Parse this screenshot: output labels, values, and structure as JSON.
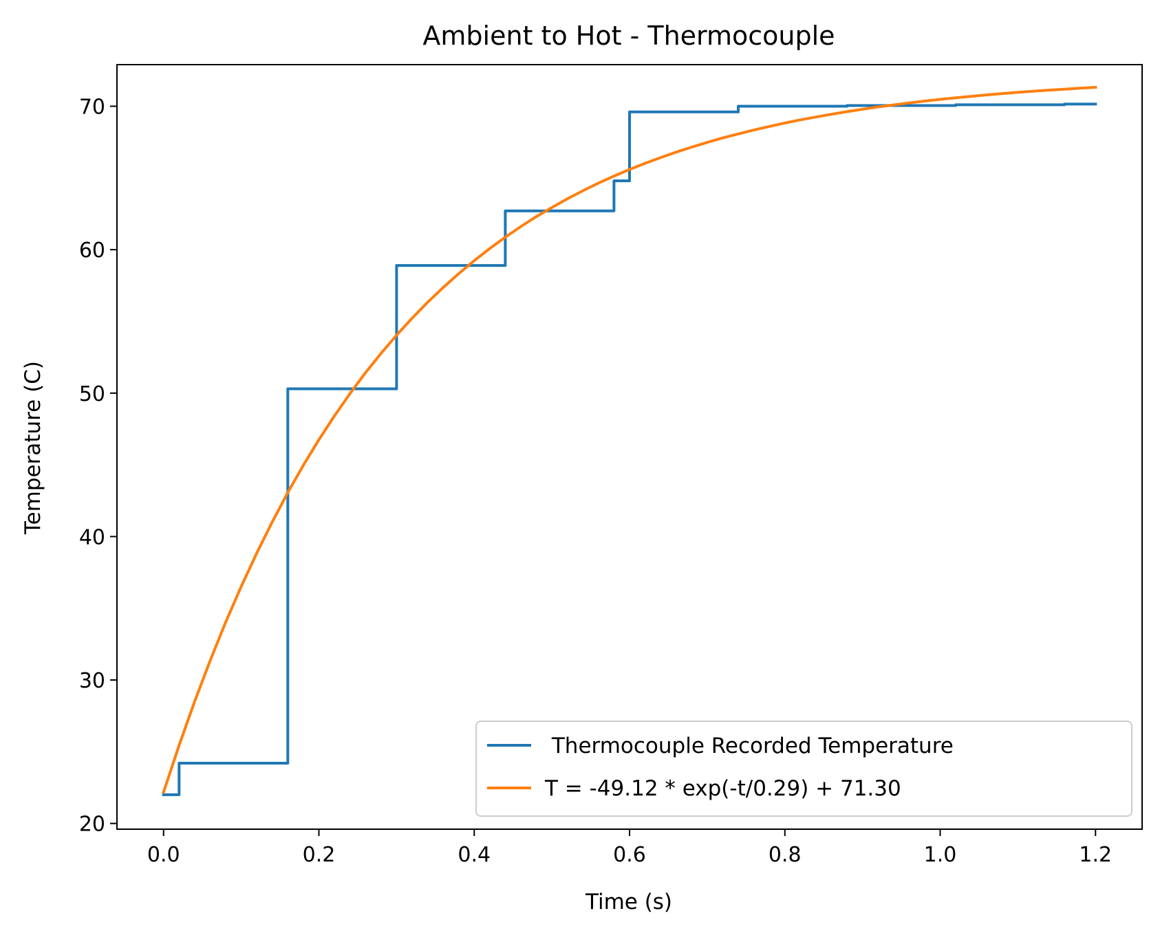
{
  "chart_data": {
    "type": "line",
    "title": "Ambient to Hot - Thermocouple",
    "xlabel": "Time (s)",
    "ylabel": "Temperature (C)",
    "xlim": [
      -0.06,
      1.26
    ],
    "ylim": [
      19.6,
      72.9
    ],
    "xticks": [
      0.0,
      0.2,
      0.4,
      0.6,
      0.8,
      1.0,
      1.2
    ],
    "xtick_labels": [
      "0.0",
      "0.2",
      "0.4",
      "0.6",
      "0.8",
      "1.0",
      "1.2"
    ],
    "yticks": [
      20,
      30,
      40,
      50,
      60,
      70
    ],
    "ytick_labels": [
      "20",
      "30",
      "40",
      "50",
      "60",
      "70"
    ],
    "grid": false,
    "legend_position": "lower-right",
    "series": [
      {
        "name": " Thermocouple Recorded Temperature",
        "color": "#1f77b4",
        "style": "step",
        "x": [
          0.0,
          0.02,
          0.02,
          0.16,
          0.16,
          0.3,
          0.3,
          0.44,
          0.44,
          0.58,
          0.58,
          0.6,
          0.6,
          0.74,
          0.74,
          0.88,
          0.88,
          1.02,
          1.02,
          1.16,
          1.16,
          1.2
        ],
        "y": [
          22.0,
          22.0,
          24.2,
          24.2,
          50.3,
          50.3,
          58.9,
          58.9,
          62.7,
          62.7,
          64.8,
          64.8,
          69.6,
          69.6,
          70.0,
          70.0,
          70.05,
          70.05,
          70.1,
          70.1,
          70.15,
          70.15
        ]
      },
      {
        "name": "T = -49.12 * exp(-t/0.29) + 71.30",
        "color": "#ff7f0e",
        "style": "line",
        "x": [
          0.0,
          0.02,
          0.04,
          0.06,
          0.08,
          0.1,
          0.12,
          0.14,
          0.16,
          0.18,
          0.2,
          0.22,
          0.24,
          0.26,
          0.28,
          0.3,
          0.32,
          0.34,
          0.36,
          0.38,
          0.4,
          0.42,
          0.44,
          0.46,
          0.48,
          0.5,
          0.52,
          0.54,
          0.56,
          0.58,
          0.6,
          0.62,
          0.64,
          0.66,
          0.68,
          0.7,
          0.72,
          0.74,
          0.76,
          0.78,
          0.8,
          0.82,
          0.84,
          0.86,
          0.88,
          0.9,
          0.92,
          0.94,
          0.96,
          0.98,
          1.0,
          1.02,
          1.04,
          1.06,
          1.08,
          1.1,
          1.12,
          1.14,
          1.16,
          1.18,
          1.2
        ],
        "y": [
          22.18,
          25.45,
          28.5,
          31.36,
          34.03,
          36.52,
          38.85,
          41.03,
          43.07,
          44.97,
          46.75,
          48.41,
          49.96,
          51.42,
          52.77,
          54.04,
          55.22,
          56.33,
          57.36,
          58.33,
          59.23,
          60.08,
          60.87,
          61.61,
          62.3,
          62.94,
          63.55,
          64.11,
          64.64,
          65.13,
          65.59,
          66.02,
          66.42,
          66.8,
          67.15,
          67.48,
          67.79,
          68.07,
          68.34,
          68.59,
          68.83,
          69.05,
          69.25,
          69.44,
          69.62,
          69.79,
          69.95,
          70.09,
          70.23,
          70.36,
          70.48,
          70.59,
          70.69,
          70.79,
          70.88,
          70.97,
          71.05,
          71.12,
          71.19,
          71.26,
          71.32
        ]
      }
    ]
  }
}
